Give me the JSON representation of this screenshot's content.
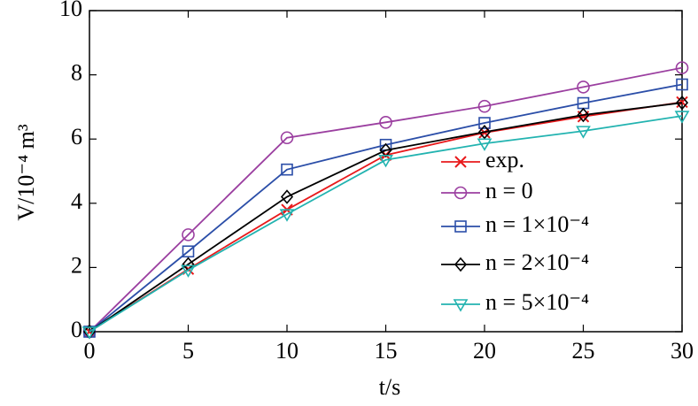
{
  "chart_data": {
    "type": "line",
    "x_label": "t/s",
    "y_label": "V/10⁻⁴ m³",
    "x": [
      0,
      5,
      10,
      15,
      20,
      25,
      30
    ],
    "xlim": [
      0,
      30
    ],
    "xticks": [
      0,
      5,
      10,
      15,
      20,
      25,
      30
    ],
    "ylim": [
      0,
      10
    ],
    "yticks": [
      0,
      2,
      4,
      6,
      8,
      10
    ],
    "legend": "lower right",
    "series": [
      {
        "name": "exp.",
        "color": "#e8191b",
        "marker": "x",
        "values": [
          0,
          1.95,
          3.8,
          5.5,
          6.2,
          6.7,
          7.15
        ]
      },
      {
        "name": "n = 0",
        "color": "#9b3fa0",
        "marker": "circle",
        "values": [
          0,
          3.02,
          6.04,
          6.52,
          7.02,
          7.62,
          8.22
        ]
      },
      {
        "name": "n = 1×10⁻⁴",
        "color": "#2b4ea8",
        "marker": "square",
        "values": [
          0,
          2.5,
          5.05,
          5.82,
          6.5,
          7.12,
          7.7
        ]
      },
      {
        "name": "n = 2×10⁻⁴",
        "color": "#000000",
        "marker": "diamond",
        "values": [
          0,
          2.1,
          4.2,
          5.65,
          6.22,
          6.75,
          7.13
        ]
      },
      {
        "name": "n = 5×10⁻⁴",
        "color": "#22b3b0",
        "marker": "triangle-down",
        "values": [
          0,
          1.92,
          3.66,
          5.35,
          5.86,
          6.25,
          6.72
        ]
      }
    ]
  }
}
